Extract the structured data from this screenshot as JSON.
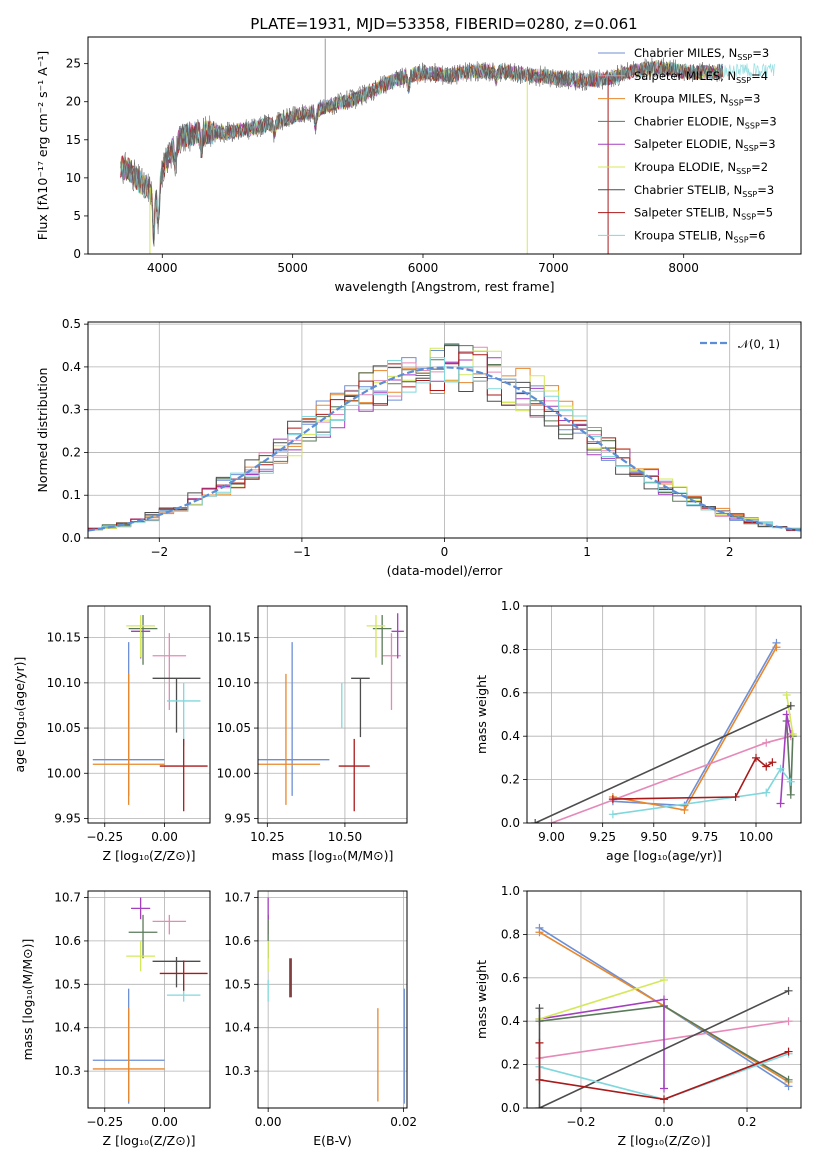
{
  "figure": {
    "title": "PLATE=1931, MJD=53358, FIBERID=0280, z=0.061"
  },
  "chart_data": [
    {
      "id": "spectrum",
      "type": "line",
      "xlabel": "wavelength [Angstrom, rest frame]",
      "ylabel": "Flux [fλ10⁻¹⁷ erg cm⁻² s⁻¹ A⁻¹]",
      "xlim": [
        3430,
        8900
      ],
      "ylim": [
        0,
        28.5
      ],
      "xticks": [
        4000,
        5000,
        6000,
        7000,
        8000
      ],
      "yticks": [
        0,
        5,
        10,
        15,
        20,
        25
      ],
      "grid": false,
      "legend": "upper right",
      "continuum": {
        "x": [
          3680,
          3750,
          3850,
          3950,
          4050,
          4150,
          4300,
          4500,
          4700,
          4900,
          5100,
          5300,
          5500,
          5800,
          6000,
          6200,
          6400,
          6600,
          6800,
          7000,
          7200,
          7400,
          7600,
          7800,
          8000,
          8200,
          8400,
          8600,
          8800
        ],
        "y": [
          11.5,
          11.0,
          9.0,
          8.5,
          13.0,
          15.5,
          16.0,
          16.0,
          16.5,
          17.5,
          18.5,
          19.5,
          20.5,
          23.0,
          23.8,
          23.5,
          24.0,
          24.0,
          23.5,
          23.2,
          22.8,
          23.0,
          24.0,
          24.5,
          24.0,
          23.8,
          24.2,
          24.0,
          24.3
        ]
      },
      "series": [
        {
          "name": "Chabrier MILES, N_SSP=3",
          "label_main": "Chabrier MILES, N",
          "label_sub": "SSP",
          "label_tail": "=3",
          "color": "#6d8fd6"
        },
        {
          "name": "Salpeter MILES, N_SSP=4",
          "label_main": "Salpeter MILES, N",
          "label_sub": "SSP",
          "label_tail": "=4",
          "color": "#e589b8"
        },
        {
          "name": "Kroupa MILES, N_SSP=3",
          "label_main": "Kroupa MILES, N",
          "label_sub": "SSP",
          "label_tail": "=3",
          "color": "#e8882e"
        },
        {
          "name": "Chabrier ELODIE, N_SSP=3",
          "label_main": "Chabrier ELODIE, N",
          "label_sub": "SSP",
          "label_tail": "=3",
          "color": "#5a7a5a"
        },
        {
          "name": "Salpeter ELODIE, N_SSP=3",
          "label_main": "Salpeter ELODIE, N",
          "label_sub": "SSP",
          "label_tail": "=3",
          "color": "#a43fc0"
        },
        {
          "name": "Kroupa ELODIE, N_SSP=2",
          "label_main": "Kroupa ELODIE, N",
          "label_sub": "SSP",
          "label_tail": "=2",
          "color": "#d4e85a"
        },
        {
          "name": "Chabrier STELIB, N_SSP=3",
          "label_main": "Chabrier STELIB, N",
          "label_sub": "SSP",
          "label_tail": "=3",
          "color": "#4d4d4d"
        },
        {
          "name": "Salpeter STELIB, N_SSP=5",
          "label_main": "Salpeter STELIB, N",
          "label_sub": "SSP",
          "label_tail": "=5",
          "color": "#aa1a1a"
        },
        {
          "name": "Kroupa STELIB, N_SSP=6",
          "label_main": "Kroupa STELIB, N",
          "label_sub": "SSP",
          "label_tail": "=6",
          "color": "#80d8dc"
        }
      ]
    },
    {
      "id": "residuals",
      "type": "histogram",
      "xlabel": "(data-model)/error",
      "ylabel": "Normed distribution",
      "xlim": [
        -2.5,
        2.5
      ],
      "ylim": [
        0,
        0.505
      ],
      "xticks": [
        -2,
        -1,
        0,
        1,
        2
      ],
      "yticks": [
        0.0,
        0.1,
        0.2,
        0.3,
        0.4,
        0.5
      ],
      "grid": true,
      "legend": "upper right",
      "legend_label": "𝒩(0, 1)",
      "gaussian_color": "#5b8ed6",
      "bin_width": 0.1,
      "bin_start": -2.5
    },
    {
      "id": "age_vs_Z",
      "type": "errorbar",
      "xlabel": "Z [log₁₀(Z/Z⊙)]",
      "ylabel": "age  [log₁₀(age/yr)]",
      "xlim": [
        -0.32,
        0.19
      ],
      "ylim": [
        9.945,
        10.185
      ],
      "xticks": [
        -0.25,
        0.0
      ],
      "yticks": [
        9.95,
        10.0,
        10.05,
        10.1,
        10.15
      ],
      "xticklabels": [
        "−0.25",
        "0.00"
      ],
      "yticklabels": [
        "9.95",
        "10.00",
        "10.05",
        "10.10",
        "10.15"
      ],
      "points": [
        {
          "color": "#6d8fd6",
          "x": -0.15,
          "xerr": 0.15,
          "y": 10.015,
          "yerr": [
            0.04,
            0.13
          ]
        },
        {
          "color": "#e8882e",
          "x": -0.15,
          "xerr": 0.15,
          "y": 10.01,
          "yerr": [
            0.045,
            0.1
          ]
        },
        {
          "color": "#e589b8",
          "x": 0.02,
          "xerr": 0.07,
          "y": 10.13,
          "yerr": [
            0.06,
            0.025
          ]
        },
        {
          "color": "#5a7a5a",
          "x": -0.09,
          "xerr": 0.06,
          "y": 10.16,
          "yerr": [
            0.04,
            0.015
          ]
        },
        {
          "color": "#a43fc0",
          "x": -0.1,
          "xerr": 0.04,
          "y": 10.157,
          "yerr": [
            0.03,
            0.0
          ]
        },
        {
          "color": "#d4e85a",
          "x": -0.1,
          "xerr": 0.06,
          "y": 10.163,
          "yerr": [
            0.035,
            0.012
          ]
        },
        {
          "color": "#4d4d4d",
          "x": 0.05,
          "xerr": 0.1,
          "y": 10.105,
          "yerr": [
            0.06,
            0.0
          ]
        },
        {
          "color": "#80d8dc",
          "x": 0.08,
          "xerr": 0.07,
          "y": 10.08,
          "yerr": [
            0.05,
            0.02
          ]
        },
        {
          "color": "#aa1a1a",
          "x": 0.08,
          "xerr": 0.1,
          "y": 10.008,
          "yerr": [
            0.05,
            0.03
          ]
        }
      ]
    },
    {
      "id": "age_vs_mass",
      "type": "errorbar",
      "xlabel": "mass [log₁₀(M/M⊙)]",
      "ylabel": "",
      "xlim": [
        10.22,
        10.7
      ],
      "ylim": [
        9.945,
        10.185
      ],
      "xticks": [
        10.25,
        10.5
      ],
      "yticks": [
        9.95,
        10.0,
        10.05,
        10.1,
        10.15
      ],
      "xticklabels": [
        "10.25",
        "10.50"
      ],
      "yticklabels": [
        "9.95",
        "10.00",
        "10.05",
        "10.10",
        "10.15"
      ],
      "points": [
        {
          "color": "#6d8fd6",
          "x": 10.33,
          "xerr": 0.12,
          "y": 10.015,
          "yerr": [
            0.04,
            0.13
          ]
        },
        {
          "color": "#e8882e",
          "x": 10.31,
          "xerr": 0.11,
          "y": 10.01,
          "yerr": [
            0.045,
            0.1
          ]
        },
        {
          "color": "#e589b8",
          "x": 10.65,
          "xerr": 0.03,
          "y": 10.13,
          "yerr": [
            0.06,
            0.025
          ]
        },
        {
          "color": "#5a7a5a",
          "x": 10.62,
          "xerr": 0.03,
          "y": 10.16,
          "yerr": [
            0.04,
            0.015
          ]
        },
        {
          "color": "#a43fc0",
          "x": 10.67,
          "xerr": 0.02,
          "y": 10.157,
          "yerr": [
            0.03,
            0.02
          ]
        },
        {
          "color": "#d4e85a",
          "x": 10.6,
          "xerr": 0.03,
          "y": 10.163,
          "yerr": [
            0.035,
            0.012
          ]
        },
        {
          "color": "#4d4d4d",
          "x": 10.55,
          "xerr": 0.03,
          "y": 10.105,
          "yerr": [
            0.065,
            0.0
          ]
        },
        {
          "color": "#80d8dc",
          "x": 10.49,
          "xerr": 0.0,
          "y": 10.08,
          "yerr": [
            0.03,
            0.02
          ]
        },
        {
          "color": "#aa1a1a",
          "x": 10.53,
          "xerr": 0.05,
          "y": 10.008,
          "yerr": [
            0.05,
            0.03
          ]
        }
      ]
    },
    {
      "id": "weight_vs_age",
      "type": "line",
      "xlabel": "age  [log₁₀(age/yr)]",
      "ylabel": "mass weight",
      "xlim": [
        8.88,
        10.22
      ],
      "ylim": [
        0,
        1.0
      ],
      "xticks": [
        9.0,
        9.25,
        9.5,
        9.75,
        10.0
      ],
      "yticks": [
        0.0,
        0.2,
        0.4,
        0.6,
        0.8,
        1.0
      ],
      "xticklabels": [
        "9.00",
        "9.25",
        "9.50",
        "9.75",
        "10.00"
      ],
      "yticklabels": [
        "0.0",
        "0.2",
        "0.4",
        "0.6",
        "0.8",
        "1.0"
      ],
      "series": [
        {
          "color": "#6d8fd6",
          "x": [
            9.3,
            9.65,
            10.1
          ],
          "y": [
            0.1,
            0.08,
            0.83
          ]
        },
        {
          "color": "#e8882e",
          "x": [
            9.3,
            9.65,
            10.1
          ],
          "y": [
            0.12,
            0.06,
            0.81
          ]
        },
        {
          "color": "#e589b8",
          "x": [
            9.0,
            10.05,
            10.17
          ],
          "y": [
            0.0,
            0.37,
            0.4
          ]
        },
        {
          "color": "#5a7a5a",
          "x": [
            10.15,
            10.17,
            10.18
          ],
          "y": [
            0.47,
            0.13,
            0.4
          ]
        },
        {
          "color": "#a43fc0",
          "x": [
            10.12,
            10.15,
            10.17
          ],
          "y": [
            0.09,
            0.5,
            0.41
          ]
        },
        {
          "color": "#d4e85a",
          "x": [
            10.15,
            10.18
          ],
          "y": [
            0.59,
            0.41
          ]
        },
        {
          "color": "#4d4d4d",
          "x": [
            8.92,
            10.17
          ],
          "y": [
            0.0,
            0.54
          ]
        },
        {
          "color": "#80d8dc",
          "x": [
            9.3,
            10.05,
            10.12,
            10.17
          ],
          "y": [
            0.04,
            0.14,
            0.25,
            0.19
          ]
        },
        {
          "color": "#aa1a1a",
          "x": [
            9.3,
            9.9,
            10.0,
            10.05,
            10.08
          ],
          "y": [
            0.11,
            0.12,
            0.3,
            0.26,
            0.28
          ]
        }
      ]
    },
    {
      "id": "mass_vs_Z",
      "type": "errorbar",
      "xlabel": "Z [log₁₀(Z/Z⊙)]",
      "ylabel": "mass [log₁₀(M/M⊙)]",
      "xlim": [
        -0.32,
        0.19
      ],
      "ylim": [
        10.215,
        10.715
      ],
      "xticks": [
        -0.25,
        0.0
      ],
      "yticks": [
        10.3,
        10.4,
        10.5,
        10.6,
        10.7
      ],
      "xticklabels": [
        "−0.25",
        "0.00"
      ],
      "yticklabels": [
        "10.3",
        "10.4",
        "10.5",
        "10.6",
        "10.7"
      ],
      "points": [
        {
          "color": "#6d8fd6",
          "x": -0.15,
          "xerr": 0.15,
          "y": 10.325,
          "yerr": [
            0.1,
            0.165
          ]
        },
        {
          "color": "#e8882e",
          "x": -0.15,
          "xerr": 0.15,
          "y": 10.305,
          "yerr": [
            0.075,
            0.14
          ]
        },
        {
          "color": "#e589b8",
          "x": 0.02,
          "xerr": 0.07,
          "y": 10.645,
          "yerr": [
            0.03,
            0.015
          ]
        },
        {
          "color": "#5a7a5a",
          "x": -0.09,
          "xerr": 0.06,
          "y": 10.62,
          "yerr": [
            0.06,
            0.04
          ]
        },
        {
          "color": "#a43fc0",
          "x": -0.1,
          "xerr": 0.04,
          "y": 10.675,
          "yerr": [
            0.025,
            0.025
          ]
        },
        {
          "color": "#d4e85a",
          "x": -0.1,
          "xerr": 0.06,
          "y": 10.565,
          "yerr": [
            0.035,
            0.035
          ]
        },
        {
          "color": "#4d4d4d",
          "x": 0.05,
          "xerr": 0.1,
          "y": 10.553,
          "yerr": [
            0.06,
            0.01
          ]
        },
        {
          "color": "#80d8dc",
          "x": 0.08,
          "xerr": 0.07,
          "y": 10.475,
          "yerr": [
            0.015,
            0.035
          ]
        },
        {
          "color": "#aa1a1a",
          "x": 0.08,
          "xerr": 0.1,
          "y": 10.525,
          "yerr": [
            0.04,
            0.03
          ]
        }
      ]
    },
    {
      "id": "mass_vs_ebv",
      "type": "errorbar",
      "xlabel": "E(B-V)",
      "ylabel": "",
      "xlim": [
        -0.0015,
        0.0205
      ],
      "ylim": [
        10.215,
        10.715
      ],
      "xticks": [
        0.0,
        0.02
      ],
      "yticks": [
        10.3,
        10.4,
        10.5,
        10.6,
        10.7
      ],
      "xticklabels": [
        "0.00",
        "0.02"
      ],
      "yticklabels": [
        "10.3",
        "10.4",
        "10.5",
        "10.6",
        "10.7"
      ],
      "points": [
        {
          "color": "#6d8fd6",
          "x": 0.0201,
          "xerr": 0,
          "y": 10.325,
          "yerr": [
            0.1,
            0.165
          ]
        },
        {
          "color": "#e8882e",
          "x": 0.0162,
          "xerr": 0,
          "y": 10.305,
          "yerr": [
            0.075,
            0.14
          ]
        },
        {
          "color": "#e589b8",
          "x": 0.0,
          "xerr": 0,
          "y": 10.645,
          "yerr": [
            0.03,
            0.015
          ]
        },
        {
          "color": "#5a7a5a",
          "x": 0.0,
          "xerr": 0,
          "y": 10.62,
          "yerr": [
            0.06,
            0.04
          ]
        },
        {
          "color": "#a43fc0",
          "x": 0.0,
          "xerr": 0,
          "y": 10.675,
          "yerr": [
            0.025,
            0.025
          ]
        },
        {
          "color": "#d4e85a",
          "x": 0.0,
          "xerr": 0,
          "y": 10.565,
          "yerr": [
            0.035,
            0.035
          ]
        },
        {
          "color": "#4d4d4d",
          "x": 0.0032,
          "xerr": 0,
          "y": 10.515,
          "yerr": [
            0.045,
            0.045
          ]
        },
        {
          "color": "#80d8dc",
          "x": 0.0,
          "xerr": 0,
          "y": 10.475,
          "yerr": [
            0.015,
            0.035
          ]
        },
        {
          "color": "#aa1a1a",
          "x": 0.0034,
          "xerr": 0,
          "y": 10.52,
          "yerr": [
            0.05,
            0.04
          ]
        }
      ]
    },
    {
      "id": "weight_vs_Z",
      "type": "line",
      "xlabel": "Z [log₁₀(Z/Z⊙)]",
      "ylabel": "mass weight",
      "xlim": [
        -0.33,
        0.33
      ],
      "ylim": [
        0,
        1.0
      ],
      "xticks": [
        -0.2,
        0.0,
        0.2
      ],
      "yticks": [
        0.0,
        0.2,
        0.4,
        0.6,
        0.8,
        1.0
      ],
      "xticklabels": [
        "−0.2",
        "0.0",
        "0.2"
      ],
      "yticklabels": [
        "0.0",
        "0.2",
        "0.4",
        "0.6",
        "0.8",
        "1.0"
      ],
      "series": [
        {
          "color": "#6d8fd6",
          "x": [
            -0.3,
            0.0,
            0.3
          ],
          "y": [
            0.83,
            0.47,
            0.1
          ]
        },
        {
          "color": "#e8882e",
          "x": [
            -0.3,
            0.0,
            0.3
          ],
          "y": [
            0.81,
            0.47,
            0.12
          ]
        },
        {
          "color": "#e589b8",
          "x": [
            -0.3,
            0.3
          ],
          "y": [
            0.23,
            0.4
          ]
        },
        {
          "color": "#5a7a5a",
          "x": [
            -0.3,
            0.0,
            0.3
          ],
          "y": [
            0.4,
            0.47,
            0.13
          ]
        },
        {
          "color": "#a43fc0",
          "x": [
            -0.3,
            0.0,
            0.0
          ],
          "y": [
            0.41,
            0.5,
            0.09
          ]
        },
        {
          "color": "#d4e85a",
          "x": [
            -0.3,
            0.0
          ],
          "y": [
            0.41,
            0.59
          ]
        },
        {
          "color": "#4d4d4d",
          "x": [
            -0.3,
            -0.3,
            0.3
          ],
          "y": [
            0.46,
            0.0,
            0.54
          ]
        },
        {
          "color": "#80d8dc",
          "x": [
            -0.3,
            0.0,
            0.3
          ],
          "y": [
            0.19,
            0.04,
            0.25
          ]
        },
        {
          "color": "#aa1a1a",
          "x": [
            -0.3,
            -0.3,
            0.0,
            0.3
          ],
          "y": [
            0.3,
            0.13,
            0.04,
            0.26
          ]
        }
      ]
    }
  ]
}
